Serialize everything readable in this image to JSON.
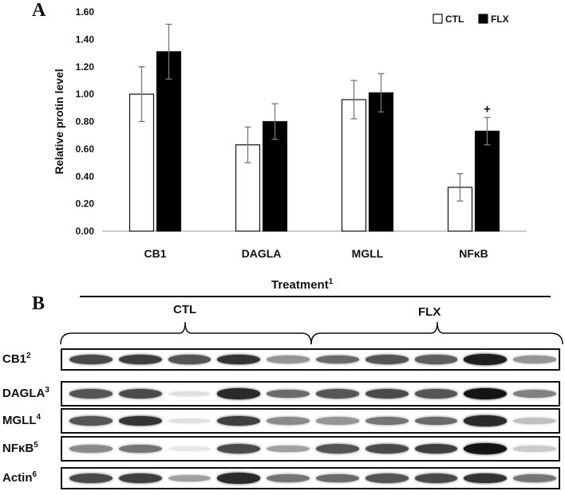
{
  "panel_a": {
    "letter": "A"
  },
  "panel_b": {
    "letter": "B"
  },
  "chart_data": {
    "type": "bar",
    "categories": [
      "CB1",
      "DAGLA",
      "MGLL",
      "NFκB"
    ],
    "series": [
      {
        "name": "CTL",
        "values": [
          1.0,
          0.63,
          0.96,
          0.32
        ],
        "errors": [
          0.2,
          0.13,
          0.14,
          0.1
        ],
        "fill": "#ffffff"
      },
      {
        "name": "FLX",
        "values": [
          1.31,
          0.8,
          1.01,
          0.73
        ],
        "errors": [
          0.2,
          0.13,
          0.14,
          0.1
        ],
        "fill": "#000000"
      }
    ],
    "ylabel": "Relative protin level",
    "xlabel": "",
    "ylim": [
      0,
      1.6
    ],
    "yticks": [
      "0.00",
      "0.20",
      "0.40",
      "0.60",
      "0.80",
      "1.00",
      "1.20",
      "1.40",
      "1.60"
    ],
    "annotations": [
      {
        "category": "NFκB",
        "series": "FLX",
        "text": "+"
      }
    ],
    "legend": "top-right",
    "grid": false
  },
  "blot": {
    "treatment_label": "Treatment",
    "treatment_sup": "1",
    "groups": [
      "CTL",
      "FLX"
    ],
    "lanes_per_group": 5,
    "rows": [
      {
        "label": "CB1",
        "sup": "2",
        "intensity": [
          0.75,
          0.8,
          0.7,
          0.85,
          0.4,
          0.6,
          0.7,
          0.65,
          0.95,
          0.4
        ]
      },
      {
        "label": "DAGLA",
        "sup": "3",
        "intensity": [
          0.7,
          0.75,
          0.05,
          0.9,
          0.6,
          0.7,
          0.75,
          0.7,
          1.0,
          0.5
        ]
      },
      {
        "label": "MGLL",
        "sup": "4",
        "intensity": [
          0.7,
          0.85,
          0.05,
          0.8,
          0.45,
          0.4,
          0.55,
          0.6,
          0.9,
          0.2
        ]
      },
      {
        "label": "NFκB",
        "sup": "5",
        "intensity": [
          0.45,
          0.55,
          0.02,
          0.75,
          0.35,
          0.7,
          0.75,
          0.8,
          1.0,
          0.15
        ]
      },
      {
        "label": "Actin",
        "sup": "6",
        "intensity": [
          0.75,
          0.8,
          0.35,
          0.9,
          0.55,
          0.6,
          0.7,
          0.75,
          0.85,
          0.55
        ]
      }
    ]
  }
}
